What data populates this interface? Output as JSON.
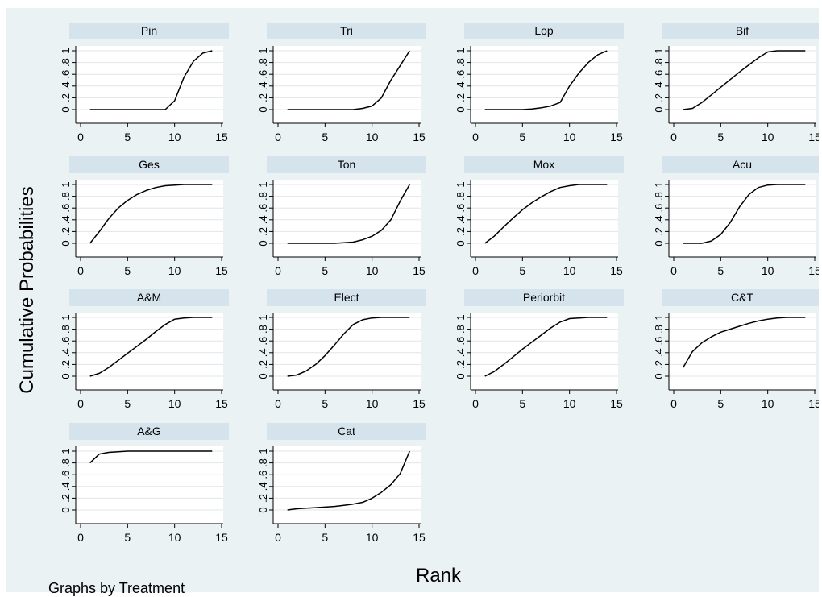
{
  "chart_data": {
    "type": "line",
    "layout": "small-multiples",
    "ylabel": "Cumulative Probabilities",
    "xlabel": "Rank",
    "note": "Graphs by Treatment",
    "xlim": [
      0,
      15
    ],
    "ylim": [
      0,
      1
    ],
    "x_ticks": [
      "0",
      "5",
      "10",
      "15"
    ],
    "y_ticks": [
      "0",
      ".2",
      ".4",
      ".6",
      ".8",
      "1"
    ],
    "grid": true,
    "colors": {
      "background": "#eaf2f3",
      "panel_header": "#d5e4ec",
      "plot": "#ffffff",
      "line": "#000000",
      "grid": "#e2e6e8"
    },
    "x": [
      1,
      2,
      3,
      4,
      5,
      6,
      7,
      8,
      9,
      10,
      11,
      12,
      13,
      14
    ],
    "panels": [
      {
        "name": "Pin",
        "values": [
          0,
          0,
          0,
          0,
          0,
          0,
          0,
          0,
          0,
          0.15,
          0.55,
          0.82,
          0.96,
          1.0
        ]
      },
      {
        "name": "Tri",
        "values": [
          0,
          0,
          0,
          0,
          0,
          0,
          0,
          0,
          0.02,
          0.06,
          0.2,
          0.5,
          0.75,
          1.0
        ]
      },
      {
        "name": "Lop",
        "values": [
          0,
          0,
          0,
          0,
          0,
          0.01,
          0.03,
          0.06,
          0.12,
          0.4,
          0.62,
          0.8,
          0.93,
          1.0
        ]
      },
      {
        "name": "Bif",
        "values": [
          0,
          0.02,
          0.12,
          0.25,
          0.38,
          0.51,
          0.64,
          0.76,
          0.88,
          0.98,
          1.0,
          1.0,
          1.0,
          1.0
        ]
      },
      {
        "name": "Ges",
        "values": [
          0,
          0.2,
          0.42,
          0.6,
          0.73,
          0.83,
          0.9,
          0.95,
          0.98,
          0.99,
          1.0,
          1.0,
          1.0,
          1.0
        ]
      },
      {
        "name": "Ton",
        "values": [
          0,
          0,
          0,
          0,
          0,
          0,
          0.01,
          0.02,
          0.06,
          0.12,
          0.22,
          0.4,
          0.72,
          1.0
        ]
      },
      {
        "name": "Mox",
        "values": [
          0,
          0.12,
          0.28,
          0.43,
          0.57,
          0.69,
          0.79,
          0.88,
          0.95,
          0.98,
          1.0,
          1.0,
          1.0,
          1.0
        ]
      },
      {
        "name": "Acu",
        "values": [
          0,
          0,
          0,
          0.04,
          0.15,
          0.35,
          0.62,
          0.83,
          0.95,
          0.99,
          1.0,
          1.0,
          1.0,
          1.0
        ]
      },
      {
        "name": "A&M",
        "values": [
          0,
          0.05,
          0.15,
          0.27,
          0.39,
          0.51,
          0.63,
          0.76,
          0.88,
          0.97,
          0.99,
          1.0,
          1.0,
          1.0
        ]
      },
      {
        "name": "Elect",
        "values": [
          0,
          0.02,
          0.09,
          0.2,
          0.35,
          0.53,
          0.72,
          0.88,
          0.96,
          0.99,
          1.0,
          1.0,
          1.0,
          1.0
        ]
      },
      {
        "name": "Periorbit",
        "values": [
          0,
          0.08,
          0.2,
          0.33,
          0.46,
          0.58,
          0.7,
          0.82,
          0.92,
          0.98,
          0.99,
          1.0,
          1.0,
          1.0
        ]
      },
      {
        "name": "C&T",
        "values": [
          0.15,
          0.42,
          0.57,
          0.67,
          0.75,
          0.8,
          0.85,
          0.9,
          0.94,
          0.97,
          0.99,
          1.0,
          1.0,
          1.0
        ]
      },
      {
        "name": "A&G",
        "values": [
          0.8,
          0.95,
          0.98,
          0.99,
          1.0,
          1.0,
          1.0,
          1.0,
          1.0,
          1.0,
          1.0,
          1.0,
          1.0,
          1.0
        ]
      },
      {
        "name": "Cat",
        "values": [
          0,
          0.02,
          0.03,
          0.04,
          0.05,
          0.06,
          0.08,
          0.1,
          0.13,
          0.2,
          0.3,
          0.43,
          0.62,
          1.0
        ]
      }
    ]
  }
}
